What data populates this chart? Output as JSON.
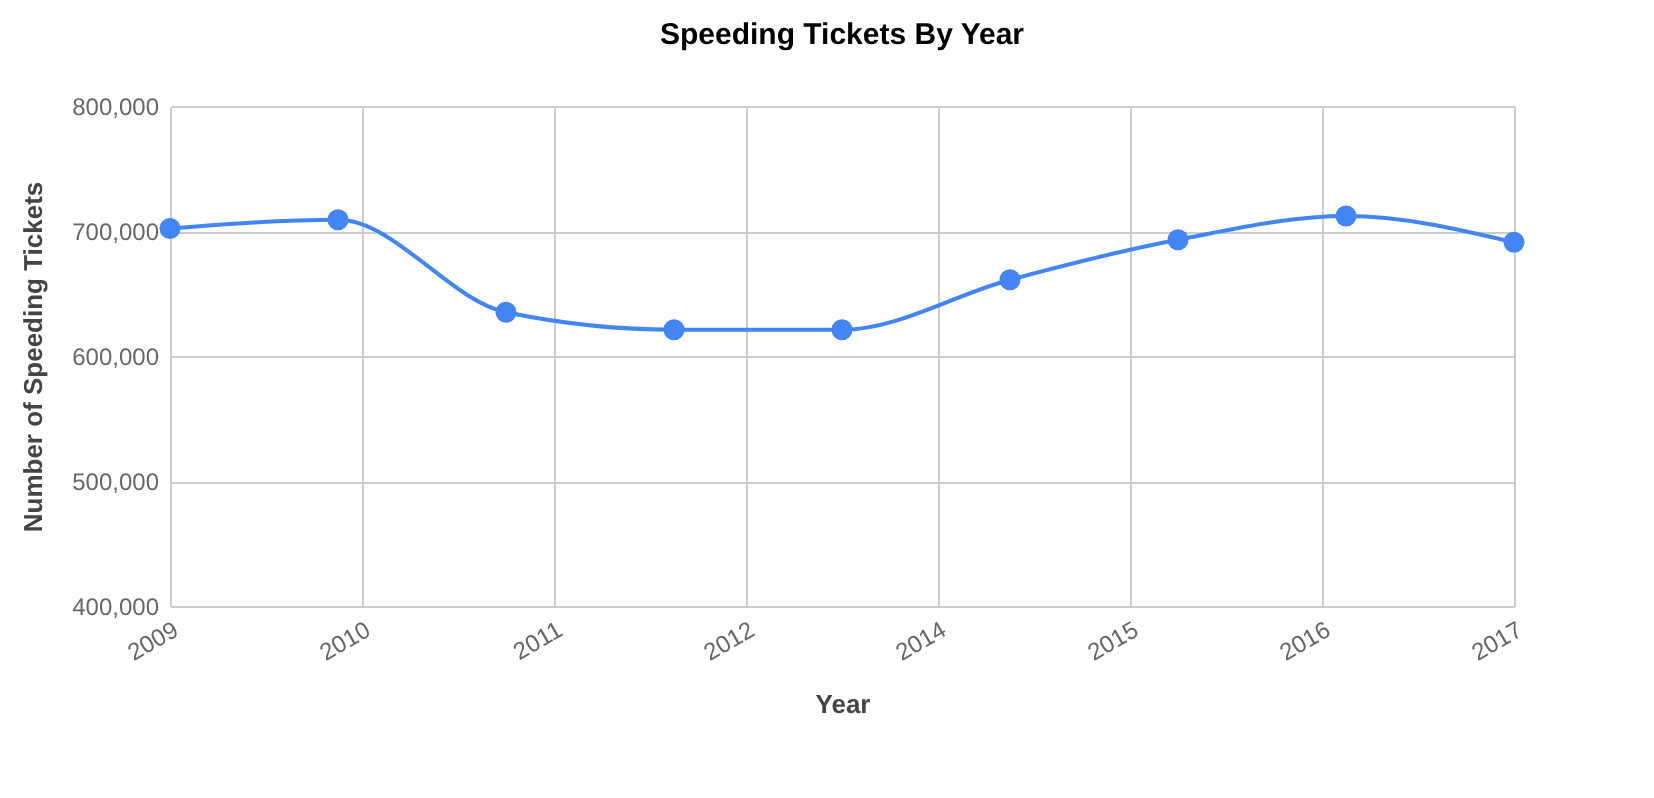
{
  "chart_data": {
    "type": "line",
    "title": "Speeding Tickets By Year",
    "xlabel": "Year",
    "ylabel": "Number of Speeding Tickets",
    "x": [
      2009,
      2010,
      2011,
      2012,
      2013,
      2014,
      2015,
      2016,
      2017
    ],
    "series": [
      {
        "color": "#4285f4",
        "values": [
          702000,
          709000,
          635000,
          621000,
          621000,
          661000,
          693000,
          712000,
          691000
        ]
      }
    ],
    "xlim": [
      2009,
      2017
    ],
    "xticks": [
      2009,
      {
        "value": 2010.143,
        "label": "2010"
      },
      {
        "value": 2011.286,
        "label": "2011"
      },
      {
        "value": 2012.429,
        "label": "2012"
      },
      {
        "value": 2013.571,
        "label": "2014"
      },
      {
        "value": 2014.714,
        "label": "2015"
      },
      {
        "value": 2015.857,
        "label": "2016"
      },
      2017
    ],
    "ylim": [
      400000,
      800000
    ],
    "yticks": [
      {
        "value": 400000,
        "label": "400,000"
      },
      {
        "value": 500000,
        "label": "500,000"
      },
      {
        "value": 600000,
        "label": "600,000"
      },
      {
        "value": 700000,
        "label": "700,000"
      },
      {
        "value": 800000,
        "label": "800,000"
      }
    ],
    "grid": true,
    "marker": "circle",
    "line_style": "solid",
    "legend": false
  }
}
